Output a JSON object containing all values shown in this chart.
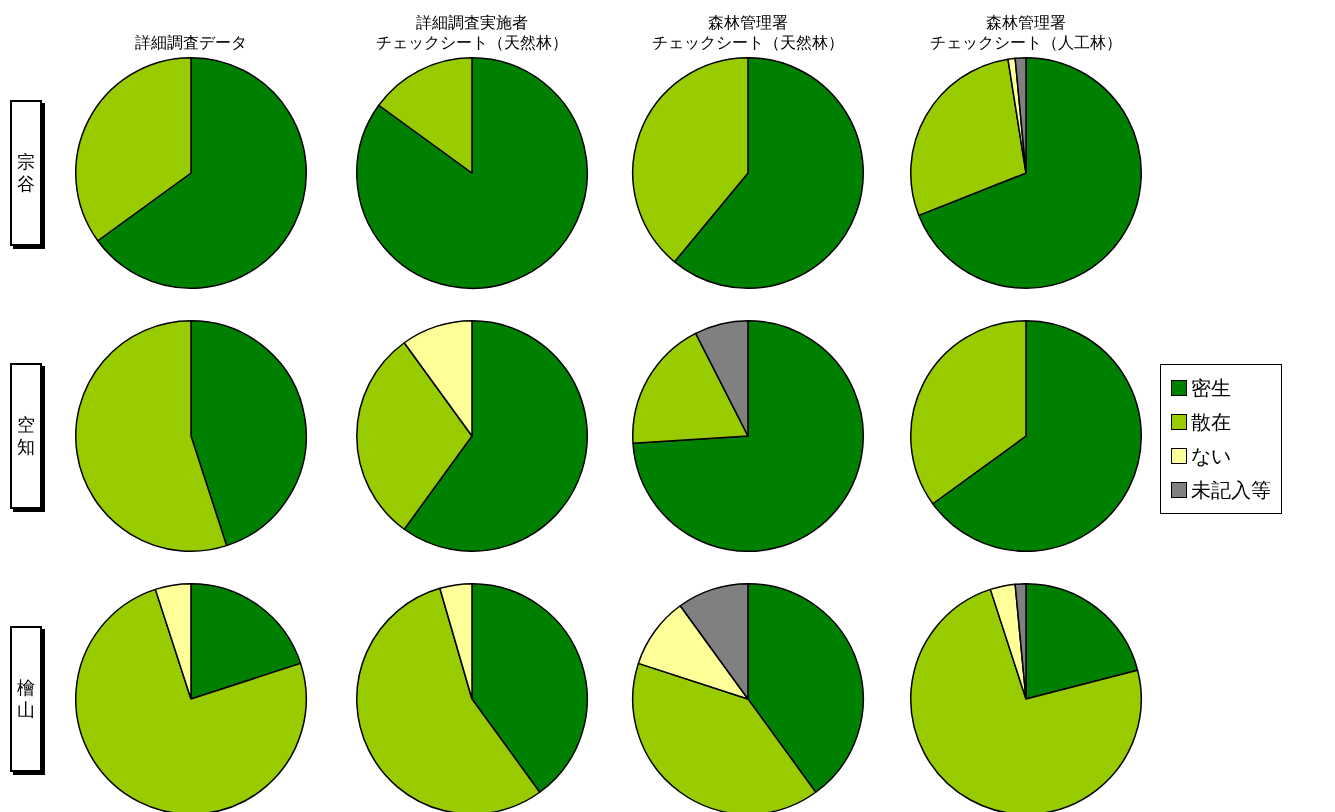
{
  "chart_data": [
    {
      "type": "pie",
      "title": "詳細調査データ",
      "ylabel": "宗谷",
      "categories": [
        null,
        null,
        null,
        null
      ],
      "values": [
        65,
        35,
        0,
        0
      ],
      "colors": [
        "#008000",
        "#99cc00",
        "#ffff99",
        "#808080"
      ]
    },
    {
      "type": "pie",
      "title": "詳細調査実施者",
      "subtitle": "チェックシート（天然林）",
      "categories": [
        null,
        null,
        null,
        null
      ],
      "values": [
        85,
        15,
        0,
        0
      ],
      "colors": [
        "#008000",
        "#99cc00",
        "#ffff99",
        "#808080"
      ]
    },
    {
      "type": "pie",
      "title": "森林管理署",
      "subtitle": "チェックシート（天然林）",
      "categories": [
        null,
        null,
        null,
        null
      ],
      "values": [
        61,
        39,
        0,
        0
      ],
      "colors": [
        "#008000",
        "#99cc00",
        "#ffff99",
        "#808080"
      ]
    },
    {
      "type": "pie",
      "title": "森林管理署",
      "subtitle": "チェックシート（人工林）",
      "categories": [
        null,
        null,
        null,
        null
      ],
      "values": [
        69,
        28.5,
        1,
        1.5
      ],
      "colors": [
        "#008000",
        "#99cc00",
        "#ffff99",
        "#808080"
      ]
    },
    {
      "type": "pie",
      "ylabel": "空知",
      "categories": [
        null,
        null,
        null,
        null
      ],
      "values": [
        45,
        55,
        0,
        0
      ],
      "colors": [
        "#008000",
        "#99cc00",
        "#ffff99",
        "#808080"
      ]
    },
    {
      "type": "pie",
      "categories": [
        null,
        null,
        null,
        null
      ],
      "values": [
        60,
        30,
        10,
        0
      ],
      "colors": [
        "#008000",
        "#99cc00",
        "#ffff99",
        "#808080"
      ]
    },
    {
      "type": "pie",
      "categories": [
        null,
        null,
        null,
        null
      ],
      "values": [
        74,
        18.5,
        0,
        7.5
      ],
      "colors": [
        "#008000",
        "#99cc00",
        "#ffff99",
        "#808080"
      ]
    },
    {
      "type": "pie",
      "legend": "right",
      "categories": [
        "密生",
        "散在",
        "ない",
        "未記入等"
      ],
      "values": [
        65,
        35,
        0,
        0
      ],
      "colors": [
        "#008000",
        "#99cc00",
        "#ffff99",
        "#808080"
      ]
    },
    {
      "type": "pie",
      "ylabel": "檜山",
      "categories": [
        null,
        null,
        null,
        null
      ],
      "values": [
        20,
        75,
        5,
        0
      ],
      "colors": [
        "#008000",
        "#99cc00",
        "#ffff99",
        "#808080"
      ]
    },
    {
      "type": "pie",
      "categories": [
        null,
        null,
        null,
        null
      ],
      "values": [
        40,
        55.5,
        4.5,
        0
      ],
      "colors": [
        "#008000",
        "#99cc00",
        "#ffff99",
        "#808080"
      ]
    },
    {
      "type": "pie",
      "categories": [
        null,
        null,
        null,
        null
      ],
      "values": [
        40,
        40,
        10,
        10
      ],
      "colors": [
        "#008000",
        "#99cc00",
        "#ffff99",
        "#808080"
      ]
    },
    {
      "type": "pie",
      "categories": [
        null,
        null,
        null,
        null
      ],
      "values": [
        21,
        74,
        3.5,
        1.5
      ],
      "colors": [
        "#008000",
        "#99cc00",
        "#ffff99",
        "#808080"
      ]
    }
  ]
}
